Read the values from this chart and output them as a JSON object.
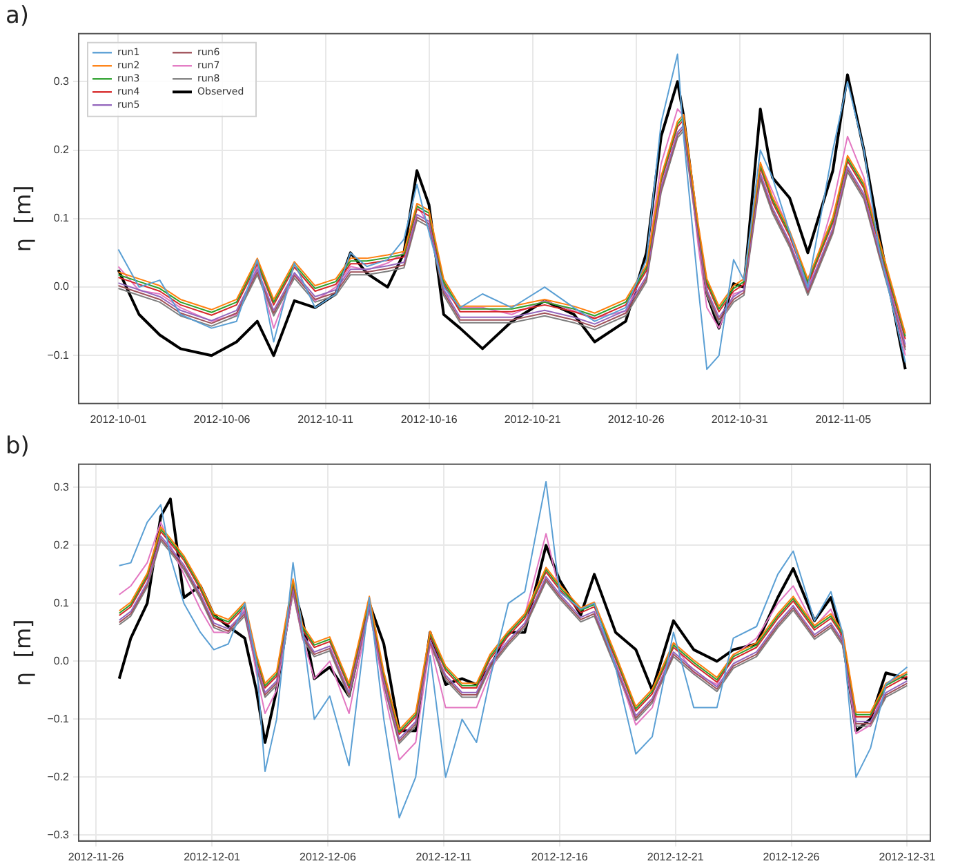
{
  "chart_data": [
    {
      "type": "line",
      "title": "a)",
      "ylabel": "η  [m]",
      "grid": true,
      "legend": "top left",
      "x": [
        "2012-10-01",
        "2012-10-02",
        "2012-10-03",
        "2012-10-04",
        "2012-10-05T12:00",
        "2012-10-06T17:00",
        "2012-10-07T17:00",
        "2012-10-08T12:00",
        "2012-10-09T12:00",
        "2012-10-10T12:00",
        "2012-10-11T12:00",
        "2012-10-12T05:00",
        "2012-10-13",
        "2012-10-14",
        "2012-10-14T19:00",
        "2012-10-15T10:00",
        "2012-10-16",
        "2012-10-16T17:00",
        "2012-10-17T12:00",
        "2012-10-18T14:00",
        "2012-10-20",
        "2012-10-21T14:00",
        "2012-10-23",
        "2012-10-24",
        "2012-10-25T12:00",
        "2012-10-26T12:00",
        "2012-10-27T05:00",
        "2012-10-28",
        "2012-10-28T07:00",
        "2012-10-29",
        "2012-10-29T10:00",
        "2012-10-30",
        "2012-10-30T17:00",
        "2012-10-31T05:00",
        "2012-11-01",
        "2012-11-01T14:00",
        "2012-11-02T10:00",
        "2012-11-03T07:00",
        "2012-11-04T12:00",
        "2012-11-05T05:00",
        "2012-11-06",
        "2012-11-06T17:00",
        "2012-11-08"
      ],
      "xlim": [
        "2012-09-29T02:00",
        "2012-11-09T05:00"
      ],
      "xticks": [
        "2012-10-01",
        "2012-10-06",
        "2012-10-11",
        "2012-10-16",
        "2012-10-21",
        "2012-10-26",
        "2012-10-31",
        "2012-11-05"
      ],
      "ylim": [
        -0.17,
        0.37
      ],
      "yticks": [
        {
          "value": -0.1,
          "label": "−0.1"
        },
        {
          "value": 0,
          "label": "0.0"
        },
        {
          "value": 0.1,
          "label": "0.1"
        },
        {
          "value": 0.2,
          "label": "0.2"
        },
        {
          "value": 0.3,
          "label": "0.3"
        }
      ],
      "series": [
        {
          "name": "run1",
          "color": "#5a9fd4",
          "values": [
            0.055,
            0.0,
            0.01,
            -0.04,
            -0.06,
            -0.05,
            0.04,
            -0.08,
            0.035,
            -0.03,
            -0.01,
            0.05,
            0.03,
            0.04,
            0.07,
            0.15,
            0.08,
            0.0,
            -0.03,
            -0.01,
            -0.03,
            0.0,
            -0.03,
            -0.05,
            -0.03,
            0.04,
            0.24,
            0.34,
            0.22,
            0.0,
            -0.12,
            -0.1,
            0.04,
            0.01,
            0.2,
            0.16,
            0.08,
            0.0,
            0.2,
            0.3,
            0.2,
            0.06,
            -0.11
          ]
        },
        {
          "name": "run2",
          "color": "#ff7f0e",
          "values": [
            0.022,
            0.012,
            0.002,
            -0.018,
            -0.033,
            -0.018,
            0.042,
            -0.018,
            0.037,
            0.002,
            0.012,
            0.042,
            0.042,
            0.047,
            0.052,
            0.122,
            0.112,
            0.012,
            -0.028,
            -0.028,
            -0.028,
            -0.018,
            -0.028,
            -0.038,
            -0.018,
            0.032,
            0.162,
            0.242,
            0.252,
            0.092,
            0.012,
            -0.028,
            0.002,
            0.012,
            0.182,
            0.132,
            0.082,
            0.012,
            0.102,
            0.192,
            0.152,
            0.072,
            -0.068
          ]
        },
        {
          "name": "run3",
          "color": "#2ca02c",
          "values": [
            0.018,
            0.008,
            -0.002,
            -0.022,
            -0.037,
            -0.022,
            0.038,
            -0.022,
            0.033,
            -0.002,
            0.008,
            0.038,
            0.038,
            0.043,
            0.048,
            0.118,
            0.108,
            0.008,
            -0.032,
            -0.032,
            -0.032,
            -0.022,
            -0.032,
            -0.042,
            -0.022,
            0.028,
            0.158,
            0.238,
            0.248,
            0.088,
            0.008,
            -0.032,
            -0.002,
            0.008,
            0.178,
            0.128,
            0.078,
            0.008,
            0.098,
            0.188,
            0.148,
            0.068,
            -0.072
          ]
        },
        {
          "name": "run4",
          "color": "#d62728",
          "values": [
            0.014,
            0.004,
            -0.006,
            -0.026,
            -0.041,
            -0.026,
            0.034,
            -0.026,
            0.029,
            -0.006,
            0.004,
            0.034,
            0.034,
            0.039,
            0.044,
            0.114,
            0.104,
            0.004,
            -0.036,
            -0.036,
            -0.036,
            -0.026,
            -0.036,
            -0.046,
            -0.026,
            0.024,
            0.154,
            0.234,
            0.244,
            0.084,
            0.004,
            -0.036,
            -0.006,
            0.004,
            0.174,
            0.124,
            0.074,
            0.004,
            0.094,
            0.184,
            0.144,
            0.064,
            -0.076
          ]
        },
        {
          "name": "run5",
          "color": "#9467bd",
          "values": [
            0.006,
            -0.004,
            -0.014,
            -0.034,
            -0.049,
            -0.034,
            0.026,
            -0.034,
            0.021,
            -0.014,
            -0.004,
            0.026,
            0.026,
            0.031,
            0.036,
            0.106,
            0.096,
            -0.004,
            -0.044,
            -0.044,
            -0.044,
            -0.034,
            -0.044,
            -0.054,
            -0.034,
            0.016,
            0.146,
            0.226,
            0.236,
            0.076,
            -0.004,
            -0.044,
            -0.014,
            -0.004,
            0.166,
            0.116,
            0.066,
            -0.004,
            0.086,
            0.176,
            0.136,
            0.056,
            -0.084
          ]
        },
        {
          "name": "run6",
          "color": "#a0525a",
          "values": [
            0.002,
            -0.008,
            -0.018,
            -0.038,
            -0.053,
            -0.038,
            0.022,
            -0.038,
            0.017,
            -0.018,
            -0.008,
            0.022,
            0.022,
            0.027,
            0.032,
            0.102,
            0.092,
            -0.008,
            -0.048,
            -0.048,
            -0.048,
            -0.038,
            -0.048,
            -0.058,
            -0.038,
            0.012,
            0.142,
            0.222,
            0.232,
            0.072,
            -0.008,
            -0.048,
            -0.018,
            -0.008,
            0.162,
            0.112,
            0.062,
            -0.008,
            0.082,
            0.172,
            0.132,
            0.052,
            -0.088
          ]
        },
        {
          "name": "run7",
          "color": "#e377c2",
          "values": [
            0.03,
            -0.005,
            -0.01,
            -0.03,
            -0.05,
            -0.04,
            0.03,
            -0.06,
            0.02,
            -0.02,
            0.0,
            0.03,
            0.025,
            0.035,
            0.05,
            0.12,
            0.09,
            -0.005,
            -0.03,
            -0.03,
            -0.04,
            -0.02,
            -0.035,
            -0.045,
            -0.035,
            0.03,
            0.18,
            0.26,
            0.25,
            0.06,
            -0.03,
            -0.06,
            -0.01,
            -0.005,
            0.18,
            0.14,
            0.08,
            -0.005,
            0.12,
            0.22,
            0.16,
            0.07,
            -0.1
          ]
        },
        {
          "name": "run8",
          "color": "#7f7f7f",
          "values": [
            -0.002,
            -0.012,
            -0.022,
            -0.042,
            -0.057,
            -0.042,
            0.018,
            -0.042,
            0.013,
            -0.022,
            -0.012,
            0.018,
            0.018,
            0.023,
            0.028,
            0.098,
            0.088,
            -0.012,
            -0.052,
            -0.052,
            -0.052,
            -0.042,
            -0.052,
            -0.062,
            -0.042,
            0.008,
            0.138,
            0.218,
            0.228,
            0.068,
            -0.012,
            -0.052,
            -0.022,
            -0.012,
            0.158,
            0.108,
            0.058,
            -0.012,
            0.078,
            0.168,
            0.128,
            0.048,
            -0.092
          ]
        },
        {
          "name": "Observed",
          "color": "#000000",
          "values": [
            0.025,
            -0.04,
            -0.07,
            -0.09,
            -0.1,
            -0.08,
            -0.05,
            -0.1,
            -0.02,
            -0.03,
            -0.01,
            0.05,
            0.02,
            0.0,
            0.05,
            0.17,
            0.12,
            -0.04,
            -0.06,
            -0.09,
            -0.05,
            -0.02,
            -0.04,
            -0.08,
            -0.05,
            0.05,
            0.22,
            0.3,
            0.25,
            0.08,
            -0.01,
            -0.06,
            0.005,
            0.0,
            0.26,
            0.16,
            0.13,
            0.05,
            0.17,
            0.31,
            0.2,
            0.08,
            -0.12
          ]
        }
      ]
    },
    {
      "type": "line",
      "title": "b)",
      "ylabel": "η  [m]",
      "grid": true,
      "x": [
        "2012-11-27",
        "2012-11-27T12:00",
        "2012-11-28T05:00",
        "2012-11-28T19:00",
        "2012-11-29T05:00",
        "2012-11-29T19:00",
        "2012-11-30T12:00",
        "2012-12-01T02:00",
        "2012-12-01T17:00",
        "2012-12-02T10:00",
        "2012-12-02T22:00",
        "2012-12-03T07:00",
        "2012-12-03T19:00",
        "2012-12-04T12:00",
        "2012-12-04T22:00",
        "2012-12-05T10:00",
        "2012-12-06T02:00",
        "2012-12-06T22:00",
        "2012-12-07T19:00",
        "2012-12-08T10:00",
        "2012-12-09T02:00",
        "2012-12-09T19:00",
        "2012-12-10T10:00",
        "2012-12-11T02:00",
        "2012-12-11T19:00",
        "2012-12-12T10:00",
        "2012-12-13",
        "2012-12-13T19:00",
        "2012-12-14T12:00",
        "2012-12-15T10:00",
        "2012-12-16",
        "2012-12-16T22:00",
        "2012-12-17T12:00",
        "2012-12-18T10:00",
        "2012-12-19T07:00",
        "2012-12-20",
        "2012-12-20T22:00",
        "2012-12-21T19:00",
        "2012-12-22T19:00",
        "2012-12-23T12:00",
        "2012-12-24T12:00",
        "2012-12-25T10:00",
        "2012-12-26T02:00",
        "2012-12-27",
        "2012-12-27T17:00",
        "2012-12-28T05:00",
        "2012-12-28T19:00",
        "2012-12-29T10:00",
        "2012-12-30T02:00",
        "2012-12-31"
      ],
      "xlim": [
        "2012-11-25T06:00",
        "2013-01-01"
      ],
      "xticks": [
        "2012-11-26",
        "2012-12-01",
        "2012-12-06",
        "2012-12-11",
        "2012-12-16",
        "2012-12-21",
        "2012-12-26",
        "2012-12-31"
      ],
      "ylim": [
        -0.31,
        0.34
      ],
      "yticks": [
        {
          "value": -0.3,
          "label": "−0.3"
        },
        {
          "value": -0.2,
          "label": "−0.2"
        },
        {
          "value": -0.1,
          "label": "−0.1"
        },
        {
          "value": 0,
          "label": "0.0"
        },
        {
          "value": 0.1,
          "label": "0.1"
        },
        {
          "value": 0.2,
          "label": "0.2"
        },
        {
          "value": 0.3,
          "label": "0.3"
        }
      ],
      "series": [
        {
          "color": "#5a9fd4",
          "values": [
            0.165,
            0.17,
            0.24,
            0.27,
            0.18,
            0.1,
            0.05,
            0.02,
            0.03,
            0.1,
            0.0,
            -0.19,
            -0.1,
            0.17,
            0.05,
            -0.1,
            -0.06,
            -0.18,
            0.11,
            -0.1,
            -0.27,
            -0.2,
            0.01,
            -0.2,
            -0.1,
            -0.14,
            -0.03,
            0.1,
            0.12,
            0.31,
            0.12,
            0.09,
            0.1,
            -0.01,
            -0.16,
            -0.13,
            0.05,
            -0.08,
            -0.08,
            0.04,
            0.06,
            0.15,
            0.19,
            0.07,
            0.12,
            0.05,
            -0.2,
            -0.15,
            -0.04,
            -0.01
          ]
        },
        {
          "color": "#ff7f0e",
          "values": [
            0.087,
            0.102,
            0.152,
            0.232,
            0.212,
            0.182,
            0.132,
            0.082,
            0.072,
            0.102,
            0.012,
            -0.038,
            -0.018,
            0.142,
            0.062,
            0.032,
            0.042,
            -0.038,
            0.112,
            -0.018,
            -0.118,
            -0.088,
            0.052,
            -0.008,
            -0.038,
            -0.038,
            0.012,
            0.052,
            0.082,
            0.162,
            0.132,
            0.092,
            0.102,
            0.012,
            -0.078,
            -0.048,
            0.032,
            0.002,
            -0.028,
            0.012,
            0.032,
            0.082,
            0.112,
            0.062,
            0.082,
            0.052,
            -0.088,
            -0.088,
            -0.038,
            -0.018
          ]
        },
        {
          "color": "#2ca02c",
          "values": [
            0.083,
            0.098,
            0.148,
            0.228,
            0.208,
            0.178,
            0.128,
            0.078,
            0.068,
            0.098,
            0.008,
            -0.042,
            -0.022,
            0.138,
            0.058,
            0.028,
            0.038,
            -0.042,
            0.108,
            -0.022,
            -0.122,
            -0.092,
            0.048,
            -0.012,
            -0.042,
            -0.042,
            0.008,
            0.048,
            0.078,
            0.158,
            0.128,
            0.088,
            0.098,
            0.008,
            -0.082,
            -0.052,
            0.028,
            -0.002,
            -0.032,
            0.008,
            0.028,
            0.078,
            0.108,
            0.058,
            0.078,
            0.048,
            -0.092,
            -0.092,
            -0.042,
            -0.022
          ]
        },
        {
          "color": "#d62728",
          "values": [
            0.079,
            0.094,
            0.144,
            0.224,
            0.204,
            0.174,
            0.124,
            0.074,
            0.064,
            0.094,
            0.004,
            -0.046,
            -0.026,
            0.134,
            0.054,
            0.024,
            0.034,
            -0.046,
            0.104,
            -0.026,
            -0.126,
            -0.096,
            0.044,
            -0.016,
            -0.046,
            -0.046,
            0.004,
            0.044,
            0.074,
            0.154,
            0.124,
            0.084,
            0.094,
            0.004,
            -0.086,
            -0.056,
            0.024,
            -0.006,
            -0.036,
            0.004,
            0.024,
            0.074,
            0.104,
            0.054,
            0.074,
            0.044,
            -0.096,
            -0.096,
            -0.046,
            -0.026
          ]
        },
        {
          "color": "#9467bd",
          "values": [
            0.071,
            0.086,
            0.136,
            0.216,
            0.196,
            0.166,
            0.116,
            0.066,
            0.056,
            0.086,
            -0.004,
            -0.054,
            -0.034,
            0.126,
            0.046,
            0.016,
            0.026,
            -0.054,
            0.096,
            -0.034,
            -0.134,
            -0.104,
            0.036,
            -0.024,
            -0.054,
            -0.054,
            -0.004,
            0.036,
            0.066,
            0.146,
            0.116,
            0.076,
            0.086,
            -0.004,
            -0.094,
            -0.064,
            0.016,
            -0.014,
            -0.044,
            -0.004,
            0.016,
            0.066,
            0.096,
            0.046,
            0.066,
            0.036,
            -0.104,
            -0.104,
            -0.054,
            -0.034
          ]
        },
        {
          "color": "#a0525a",
          "values": [
            0.067,
            0.082,
            0.132,
            0.212,
            0.192,
            0.162,
            0.112,
            0.062,
            0.052,
            0.082,
            -0.008,
            -0.058,
            -0.038,
            0.122,
            0.042,
            0.012,
            0.022,
            -0.058,
            0.092,
            -0.038,
            -0.138,
            -0.108,
            0.032,
            -0.028,
            -0.058,
            -0.058,
            -0.008,
            0.032,
            0.062,
            0.142,
            0.112,
            0.072,
            0.082,
            -0.008,
            -0.098,
            -0.068,
            0.012,
            -0.018,
            -0.048,
            -0.008,
            0.012,
            0.062,
            0.092,
            0.042,
            0.062,
            0.032,
            -0.108,
            -0.108,
            -0.058,
            -0.038
          ]
        },
        {
          "color": "#e377c2",
          "values": [
            0.115,
            0.13,
            0.17,
            0.24,
            0.2,
            0.15,
            0.09,
            0.05,
            0.05,
            0.09,
            -0.02,
            -0.09,
            -0.05,
            0.12,
            0.04,
            -0.03,
            0.0,
            -0.09,
            0.09,
            -0.05,
            -0.17,
            -0.14,
            0.03,
            -0.08,
            -0.08,
            -0.08,
            -0.02,
            0.05,
            0.08,
            0.22,
            0.12,
            0.09,
            0.1,
            -0.005,
            -0.11,
            -0.08,
            0.03,
            -0.02,
            -0.04,
            0.01,
            0.04,
            0.1,
            0.13,
            0.06,
            0.09,
            0.04,
            -0.125,
            -0.11,
            -0.04,
            -0.02
          ]
        },
        {
          "color": "#7f7f7f",
          "values": [
            0.063,
            0.078,
            0.128,
            0.208,
            0.188,
            0.158,
            0.108,
            0.058,
            0.048,
            0.078,
            -0.012,
            -0.062,
            -0.042,
            0.118,
            0.038,
            0.008,
            0.018,
            -0.062,
            0.088,
            -0.042,
            -0.142,
            -0.112,
            0.028,
            -0.032,
            -0.062,
            -0.062,
            -0.012,
            0.028,
            0.058,
            0.138,
            0.108,
            0.068,
            0.078,
            -0.012,
            -0.102,
            -0.072,
            0.008,
            -0.022,
            -0.052,
            -0.012,
            0.008,
            0.058,
            0.088,
            0.038,
            0.058,
            0.028,
            -0.112,
            -0.112,
            -0.062,
            -0.042
          ]
        },
        {
          "color": "#000000",
          "values": [
            -0.03,
            0.04,
            0.1,
            0.25,
            0.28,
            0.11,
            0.13,
            0.08,
            0.06,
            0.04,
            -0.05,
            -0.14,
            -0.05,
            0.13,
            0.07,
            -0.03,
            -0.01,
            -0.06,
            0.1,
            0.03,
            -0.12,
            -0.12,
            0.05,
            -0.04,
            -0.03,
            -0.04,
            -0.01,
            0.05,
            0.05,
            0.2,
            0.14,
            0.08,
            0.15,
            0.05,
            0.02,
            -0.05,
            0.07,
            0.02,
            0.0,
            0.02,
            0.03,
            0.11,
            0.16,
            0.07,
            0.11,
            0.04,
            -0.12,
            -0.1,
            -0.02,
            -0.03
          ]
        }
      ]
    }
  ]
}
